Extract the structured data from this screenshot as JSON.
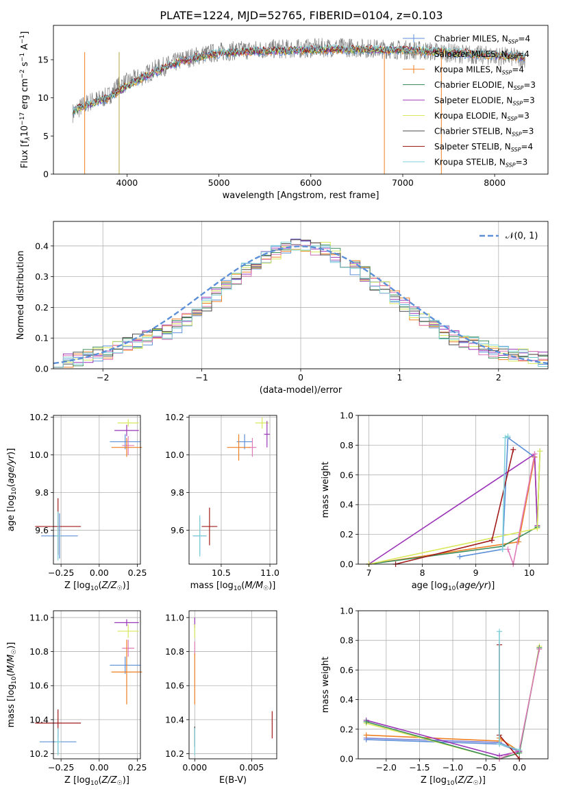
{
  "figure": {
    "title": "PLATE=1224, MJD=52765, FIBERID=0104, z=0.103"
  },
  "palette": {
    "grid": "#b0b0b0",
    "normal_curve": "#5b8fd8"
  },
  "chart_data": [
    {
      "id": "spectrum",
      "type": "line",
      "xlabel": "wavelength [Angstrom, rest frame]",
      "ylabel": "Flux [f_λ10^-17 erg cm^-2 s^-1 A^-1]",
      "xlim": [
        3200,
        8580
      ],
      "ylim": [
        0,
        19.5
      ],
      "xticks": [
        4000,
        5000,
        6000,
        7000,
        8000
      ],
      "yticks": [
        0,
        5,
        10,
        15
      ],
      "grid": false,
      "legend_position": "right",
      "data_curve": {
        "color": "#808080",
        "x": [
          3410,
          3500,
          3600,
          3700,
          3800,
          3900,
          4000,
          4100,
          4200,
          4300,
          4400,
          4500,
          4600,
          4700,
          4800,
          4900,
          5000,
          5200,
          5400,
          5600,
          5800,
          6000,
          6200,
          6400,
          6600,
          6800,
          7000,
          7200,
          7400,
          7600,
          7800,
          8000,
          8200,
          8330
        ],
        "y": [
          8.0,
          8.8,
          9.5,
          9.8,
          10.2,
          11.5,
          12.0,
          12.5,
          13.0,
          13.7,
          14.1,
          14.5,
          15.0,
          15.3,
          15.6,
          15.8,
          16.0,
          16.2,
          16.3,
          16.4,
          16.4,
          16.5,
          16.6,
          16.6,
          16.5,
          16.4,
          16.3,
          16.2,
          16.0,
          15.8,
          15.6,
          15.5,
          15.3,
          15.2
        ]
      },
      "series": [
        {
          "name": "Chabrier MILES, N_SSP=4",
          "color": "#5b8fd8"
        },
        {
          "name": "Salpeter MILES, N_SSP=4",
          "color": "#9a9a9a"
        },
        {
          "name": "Kroupa MILES, N_SSP=4",
          "color": "#ef7f22"
        },
        {
          "name": "Chabrier ELODIE, N_SSP=3",
          "color": "#3c8c5a"
        },
        {
          "name": "Salpeter ELODIE, N_SSP=3",
          "color": "#9b35b8"
        },
        {
          "name": "Kroupa ELODIE, N_SSP=3",
          "color": "#d8e85a"
        },
        {
          "name": "Chabrier STELIB, N_SSP=3",
          "color": "#4a4a4a"
        },
        {
          "name": "Salpeter STELIB, N_SSP=4",
          "color": "#a11a1a"
        },
        {
          "name": "Kroupa STELIB, N_SSP=3",
          "color": "#7fd0d8"
        }
      ],
      "model_continuum": {
        "x": [
          3410,
          3500,
          3600,
          3700,
          3800,
          3900,
          4000,
          4200,
          4400,
          4600,
          4800,
          5000,
          5400,
          5800,
          6200,
          6600,
          7000,
          7400,
          7800,
          8200,
          8330
        ],
        "y": [
          8.3,
          8.7,
          9.2,
          9.6,
          10.0,
          10.8,
          11.5,
          12.8,
          13.9,
          14.8,
          15.4,
          15.8,
          16.1,
          16.2,
          16.3,
          16.3,
          16.2,
          16.0,
          15.7,
          15.4,
          15.3
        ]
      },
      "drop_lines_x": [
        3540,
        3915,
        6800,
        7420
      ]
    },
    {
      "id": "residuals",
      "type": "step",
      "xlabel": "(data-model)/error",
      "ylabel": "Normed distribution",
      "xlim": [
        -2.5,
        2.5
      ],
      "ylim": [
        0,
        0.48
      ],
      "xticks": [
        -2,
        -1,
        0,
        1,
        2
      ],
      "yticks": [
        0.0,
        0.1,
        0.2,
        0.3,
        0.4
      ],
      "grid": true,
      "legend_position": "top-right",
      "legend": "N(0,1)",
      "bin_edges": [
        -2.5,
        -2.4,
        -2.3,
        -2.2,
        -2.1,
        -2.0,
        -1.9,
        -1.8,
        -1.7,
        -1.6,
        -1.5,
        -1.4,
        -1.3,
        -1.2,
        -1.1,
        -1.0,
        -0.9,
        -0.8,
        -0.7,
        -0.6,
        -0.5,
        -0.4,
        -0.3,
        -0.2,
        -0.1,
        0.0,
        0.1,
        0.2,
        0.3,
        0.4,
        0.5,
        0.6,
        0.7,
        0.8,
        0.9,
        1.0,
        1.1,
        1.2,
        1.3,
        1.4,
        1.5,
        1.6,
        1.7,
        1.8,
        1.9,
        2.0,
        2.1,
        2.2,
        2.3,
        2.4,
        2.5
      ],
      "base_histogram": [
        0.02,
        0.025,
        0.03,
        0.04,
        0.05,
        0.055,
        0.065,
        0.08,
        0.09,
        0.1,
        0.11,
        0.12,
        0.14,
        0.16,
        0.18,
        0.21,
        0.24,
        0.27,
        0.29,
        0.32,
        0.34,
        0.36,
        0.38,
        0.39,
        0.4,
        0.4,
        0.39,
        0.39,
        0.37,
        0.35,
        0.33,
        0.31,
        0.28,
        0.26,
        0.23,
        0.21,
        0.18,
        0.16,
        0.14,
        0.12,
        0.1,
        0.09,
        0.08,
        0.07,
        0.06,
        0.05,
        0.045,
        0.04,
        0.035,
        0.03
      ],
      "series_colors": [
        "#5b8fd8",
        "#ef7f22",
        "#3c8c5a",
        "#9b35b8",
        "#d8e85a",
        "#e07ab8",
        "#4a4a4a",
        "#7fd0d8"
      ]
    },
    {
      "id": "age-vs-Z",
      "type": "errorbar",
      "xlabel": "Z [log10(Z/Z☉)]",
      "ylabel": "age [log10(age/yr)]",
      "xlim": [
        -0.3,
        0.27
      ],
      "ylim": [
        9.42,
        10.21
      ],
      "xticks": [
        -0.25,
        0.0,
        0.25
      ],
      "yticks": [
        9.6,
        9.8,
        10.0,
        10.2
      ],
      "grid": true,
      "points": [
        {
          "color": "#d8e85a",
          "x": 0.19,
          "y": 10.17,
          "xerr": 0.07,
          "yerr": 0.02
        },
        {
          "color": "#9b35b8",
          "x": 0.18,
          "y": 10.13,
          "xerr": 0.08,
          "yerr": 0.03
        },
        {
          "color": "#5b8fd8",
          "x": 0.17,
          "y": 10.07,
          "xerr": 0.1,
          "yerr": 0.04
        },
        {
          "color": "#e07ab8",
          "x": 0.19,
          "y": 10.05,
          "xerr": 0.04,
          "yerr": 0.05
        },
        {
          "color": "#ef7f22",
          "x": 0.18,
          "y": 10.04,
          "xerr": 0.1,
          "yerr": 0.05
        },
        {
          "color": "#a11a1a",
          "x": -0.27,
          "y": 9.62,
          "xerr": 0.15,
          "yerr": 0.15
        },
        {
          "color": "#5b8fd8",
          "x": -0.26,
          "y": 9.57,
          "xerr": 0.12,
          "yerr": 0.12
        },
        {
          "color": "#7fd0d8",
          "x": -0.27,
          "y": 9.57,
          "xerr": 0.02,
          "yerr": 0.13
        }
      ]
    },
    {
      "id": "age-vs-mass",
      "type": "errorbar",
      "xlabel": "mass [log10(M/M☉)]",
      "ylabel": "",
      "xlim": [
        10.17,
        11.07
      ],
      "ylim": [
        9.42,
        10.21
      ],
      "xticks": [
        10.5,
        11.0
      ],
      "yticks": [
        9.6,
        9.8,
        10.0,
        10.2
      ],
      "grid": true,
      "points": [
        {
          "color": "#d8e85a",
          "x": 10.92,
          "y": 10.17,
          "xerr": 0.07,
          "yerr": 0.03
        },
        {
          "color": "#9b35b8",
          "x": 10.97,
          "y": 10.11,
          "xerr": 0.03,
          "yerr": 0.07
        },
        {
          "color": "#5b8fd8",
          "x": 10.74,
          "y": 10.07,
          "xerr": 0.08,
          "yerr": 0.04
        },
        {
          "color": "#e07ab8",
          "x": 10.82,
          "y": 10.04,
          "xerr": 0.04,
          "yerr": 0.05
        },
        {
          "color": "#ef7f22",
          "x": 10.68,
          "y": 10.04,
          "xerr": 0.12,
          "yerr": 0.07
        },
        {
          "color": "#a11a1a",
          "x": 10.38,
          "y": 9.62,
          "xerr": 0.08,
          "yerr": 0.1
        },
        {
          "color": "#5b8fd8",
          "x": 10.28,
          "y": 9.57,
          "xerr": 0.07,
          "yerr": 0.1
        },
        {
          "color": "#7fd0d8",
          "x": 10.28,
          "y": 9.57,
          "xerr": 0.07,
          "yerr": 0.11
        }
      ]
    },
    {
      "id": "weights-vs-age",
      "type": "line",
      "xlabel": "age [log10(age/yr)]",
      "ylabel": "mass weight",
      "xlim": [
        6.8,
        10.35
      ],
      "ylim": [
        0,
        1.0
      ],
      "xticks": [
        7,
        8,
        9,
        10
      ],
      "yticks": [
        0.0,
        0.2,
        0.4,
        0.6,
        0.8,
        1.0
      ],
      "grid": true,
      "series": [
        {
          "color": "#5b8fd8",
          "x": [
            8.7,
            9.5,
            9.6,
            10.1,
            10.15
          ],
          "y": [
            0.05,
            0.1,
            0.85,
            0.72,
            0.25
          ]
        },
        {
          "color": "#ef7f22",
          "x": [
            7.0,
            9.8,
            10.1,
            10.15
          ],
          "y": [
            0.0,
            0.15,
            0.72,
            0.26
          ]
        },
        {
          "color": "#3c8c5a",
          "x": [
            7.0,
            9.5,
            10.15,
            10.2
          ],
          "y": [
            0.0,
            0.12,
            0.25,
            0.76
          ]
        },
        {
          "color": "#9b35b8",
          "x": [
            7.0,
            10.1,
            10.15
          ],
          "y": [
            0.0,
            0.74,
            0.26
          ]
        },
        {
          "color": "#d8e85a",
          "x": [
            7.0,
            10.15,
            10.2
          ],
          "y": [
            0.0,
            0.24,
            0.76
          ]
        },
        {
          "color": "#e07ab8",
          "x": [
            9.6,
            9.7,
            10.1
          ],
          "y": [
            0.1,
            0.0,
            0.74
          ]
        },
        {
          "color": "#a11a1a",
          "x": [
            7.5,
            9.3,
            9.7
          ],
          "y": [
            0.0,
            0.16,
            0.77
          ]
        },
        {
          "color": "#7fd0d8",
          "x": [
            9.5,
            9.55,
            9.6
          ],
          "y": [
            0.1,
            0.85,
            0.86
          ]
        }
      ]
    },
    {
      "id": "mass-vs-Z",
      "type": "errorbar",
      "xlabel": "Z [log10(Z/Z☉)]",
      "ylabel": "mass [log10(M/M☉)]",
      "xlim": [
        -0.3,
        0.27
      ],
      "ylim": [
        10.17,
        11.04
      ],
      "xticks": [
        -0.25,
        0.0,
        0.25
      ],
      "yticks": [
        10.2,
        10.4,
        10.6,
        10.8,
        11.0
      ],
      "grid": true,
      "points": [
        {
          "color": "#9b35b8",
          "x": 0.18,
          "y": 10.97,
          "xerr": 0.08,
          "yerr": 0.02
        },
        {
          "color": "#d8e85a",
          "x": 0.19,
          "y": 10.92,
          "xerr": 0.07,
          "yerr": 0.04
        },
        {
          "color": "#e07ab8",
          "x": 0.19,
          "y": 10.82,
          "xerr": 0.04,
          "yerr": 0.05
        },
        {
          "color": "#5b8fd8",
          "x": 0.17,
          "y": 10.72,
          "xerr": 0.1,
          "yerr": 0.05
        },
        {
          "color": "#ef7f22",
          "x": 0.18,
          "y": 10.68,
          "xerr": 0.1,
          "yerr": 0.19
        },
        {
          "color": "#a11a1a",
          "x": -0.27,
          "y": 10.38,
          "xerr": 0.15,
          "yerr": 0.08
        },
        {
          "color": "#5b8fd8",
          "x": -0.27,
          "y": 10.27,
          "xerr": 0.12,
          "yerr": 0.07
        },
        {
          "color": "#7fd0d8",
          "x": -0.27,
          "y": 10.27,
          "xerr": 0.02,
          "yerr": 0.08
        }
      ]
    },
    {
      "id": "mass-vs-ebv",
      "type": "errorbar",
      "xlabel": "E(B-V)",
      "ylabel": "",
      "xlim": [
        -0.0005,
        0.0072
      ],
      "ylim": [
        10.17,
        11.04
      ],
      "xticks": [
        0.0,
        0.005
      ],
      "tick_labels": [
        "0.000",
        "0.005"
      ],
      "yticks": [
        10.2,
        10.4,
        10.6,
        10.8,
        11.0
      ],
      "grid": true,
      "points": [
        {
          "color": "#9b35b8",
          "x": 0.0,
          "y": 10.97,
          "xerr": 0,
          "yerr": 0.03
        },
        {
          "color": "#d8e85a",
          "x": 0.0,
          "y": 10.92,
          "xerr": 0,
          "yerr": 0.04
        },
        {
          "color": "#e07ab8",
          "x": 0.0,
          "y": 10.82,
          "xerr": 0,
          "yerr": 0.04
        },
        {
          "color": "#ef7f22",
          "x": 0.0,
          "y": 10.64,
          "xerr": 0,
          "yerr": 0.15
        },
        {
          "color": "#a11a1a",
          "x": 0.0068,
          "y": 10.37,
          "xerr": 0,
          "yerr": 0.08
        },
        {
          "color": "#4a4a4a",
          "x": 0.0,
          "y": 10.3,
          "xerr": 0,
          "yerr": 0.06
        },
        {
          "color": "#7fd0d8",
          "x": 0.0,
          "y": 10.27,
          "xerr": 0,
          "yerr": 0.08
        }
      ]
    },
    {
      "id": "weights-vs-Z",
      "type": "line",
      "xlabel": "Z [log10(Z/Z☉)]",
      "ylabel": "mass weight",
      "xlim": [
        -2.42,
        0.43
      ],
      "ylim": [
        0,
        1.0
      ],
      "xticks": [
        -2.0,
        -1.5,
        -1.0,
        -0.5,
        0.0
      ],
      "yticks": [
        0.0,
        0.2,
        0.4,
        0.6,
        0.8,
        1.0
      ],
      "grid": true,
      "series": [
        {
          "color": "#5b8fd8",
          "x": [
            -2.3,
            -0.3,
            0.0
          ],
          "y": [
            0.13,
            0.1,
            0.05
          ]
        },
        {
          "color": "#7b82d8",
          "x": [
            -2.3,
            -0.3,
            0.0
          ],
          "y": [
            0.14,
            0.11,
            0.05
          ]
        },
        {
          "color": "#ef7f22",
          "x": [
            -2.3,
            -0.3,
            -0.3,
            0.0
          ],
          "y": [
            0.16,
            0.12,
            0.14,
            0.05
          ]
        },
        {
          "color": "#9b35b8",
          "x": [
            -2.3,
            -0.3,
            0.0
          ],
          "y": [
            0.26,
            0.02,
            0.05
          ]
        },
        {
          "color": "#d8e85a",
          "x": [
            -2.3,
            -0.3,
            0.0,
            0.3
          ],
          "y": [
            0.24,
            0.0,
            0.04,
            0.76
          ]
        },
        {
          "color": "#3c8c5a",
          "x": [
            -2.3,
            -0.3,
            0.0,
            0.3
          ],
          "y": [
            0.25,
            0.0,
            0.04,
            0.75
          ]
        },
        {
          "color": "#e07ab8",
          "x": [
            -0.3,
            0.0,
            0.3
          ],
          "y": [
            0.0,
            0.06,
            0.74
          ]
        },
        {
          "color": "#a11a1a",
          "x": [
            -0.3,
            -0.3,
            0.0
          ],
          "y": [
            0.77,
            0.16,
            0.0
          ]
        },
        {
          "color": "#7fd0d8",
          "x": [
            -0.3,
            -0.3,
            0.0
          ],
          "y": [
            0.86,
            0.1,
            0.06
          ]
        }
      ]
    }
  ]
}
